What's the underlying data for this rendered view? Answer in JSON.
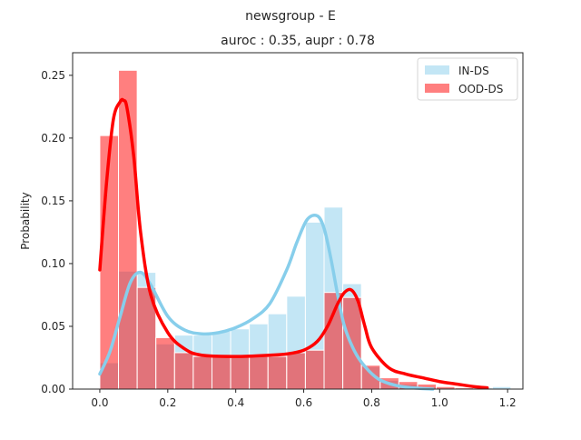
{
  "chart_data": {
    "type": "bar",
    "suptitle": "newsgroup - E",
    "title": "auroc : 0.35, aupr : 0.78",
    "xlabel": "",
    "ylabel": "Probability",
    "xlim": [
      -0.08,
      1.245
    ],
    "ylim": [
      0,
      0.268
    ],
    "xticks": [
      0.0,
      0.2,
      0.4,
      0.6,
      0.8,
      1.0,
      1.2
    ],
    "xtick_labels": [
      "0.0",
      "0.2",
      "0.4",
      "0.6",
      "0.8",
      "1.0",
      "1.2"
    ],
    "yticks": [
      0.0,
      0.05,
      0.1,
      0.15,
      0.2,
      0.25
    ],
    "ytick_labels": [
      "0.00",
      "0.05",
      "0.10",
      "0.15",
      "0.20",
      "0.25"
    ],
    "grid": false,
    "legend": {
      "placement": "top-right",
      "entries": [
        "IN-DS",
        "OOD-DS"
      ]
    },
    "series": [
      {
        "name": "IN-DS",
        "kind": "histogram",
        "color": "#87ceeb",
        "bins": [
          {
            "x0": 0.0,
            "x1": 0.055,
            "value": 0.021
          },
          {
            "x0": 0.055,
            "x1": 0.11,
            "value": 0.094
          },
          {
            "x0": 0.11,
            "x1": 0.165,
            "value": 0.093
          },
          {
            "x0": 0.165,
            "x1": 0.22,
            "value": 0.036
          },
          {
            "x0": 0.22,
            "x1": 0.275,
            "value": 0.043
          },
          {
            "x0": 0.275,
            "x1": 0.33,
            "value": 0.043
          },
          {
            "x0": 0.33,
            "x1": 0.385,
            "value": 0.046
          },
          {
            "x0": 0.385,
            "x1": 0.44,
            "value": 0.048
          },
          {
            "x0": 0.44,
            "x1": 0.495,
            "value": 0.052
          },
          {
            "x0": 0.495,
            "x1": 0.55,
            "value": 0.06
          },
          {
            "x0": 0.55,
            "x1": 0.605,
            "value": 0.074
          },
          {
            "x0": 0.605,
            "x1": 0.66,
            "value": 0.133
          },
          {
            "x0": 0.66,
            "x1": 0.715,
            "value": 0.145
          },
          {
            "x0": 0.715,
            "x1": 0.77,
            "value": 0.084
          },
          {
            "x0": 0.77,
            "x1": 0.825,
            "value": 0.018
          },
          {
            "x0": 0.825,
            "x1": 0.88,
            "value": 0.007
          },
          {
            "x0": 0.88,
            "x1": 0.935,
            "value": 0.004
          },
          {
            "x0": 0.935,
            "x1": 0.99,
            "value": 0.002
          },
          {
            "x0": 0.99,
            "x1": 1.045,
            "value": 0.001
          },
          {
            "x0": 1.045,
            "x1": 1.1,
            "value": 0.001
          },
          {
            "x0": 1.1,
            "x1": 1.155,
            "value": 0.001
          },
          {
            "x0": 1.155,
            "x1": 1.21,
            "value": 0.002
          }
        ],
        "kde": {
          "x": [
            0.0,
            0.03,
            0.06,
            0.09,
            0.12,
            0.15,
            0.2,
            0.25,
            0.3,
            0.35,
            0.4,
            0.45,
            0.5,
            0.55,
            0.58,
            0.61,
            0.64,
            0.66,
            0.68,
            0.7,
            0.72,
            0.75,
            0.78,
            0.82,
            0.87,
            0.92,
            0.98
          ],
          "y": [
            0.012,
            0.03,
            0.058,
            0.085,
            0.093,
            0.083,
            0.058,
            0.047,
            0.044,
            0.045,
            0.049,
            0.056,
            0.068,
            0.095,
            0.117,
            0.135,
            0.138,
            0.128,
            0.104,
            0.075,
            0.05,
            0.03,
            0.018,
            0.008,
            0.003,
            0.001,
            0.0
          ]
        }
      },
      {
        "name": "OOD-DS",
        "kind": "histogram",
        "color": "#ff0000",
        "bins": [
          {
            "x0": 0.0,
            "x1": 0.055,
            "value": 0.202
          },
          {
            "x0": 0.055,
            "x1": 0.11,
            "value": 0.254
          },
          {
            "x0": 0.11,
            "x1": 0.165,
            "value": 0.081
          },
          {
            "x0": 0.165,
            "x1": 0.22,
            "value": 0.041
          },
          {
            "x0": 0.22,
            "x1": 0.275,
            "value": 0.029
          },
          {
            "x0": 0.275,
            "x1": 0.33,
            "value": 0.026
          },
          {
            "x0": 0.33,
            "x1": 0.385,
            "value": 0.026
          },
          {
            "x0": 0.385,
            "x1": 0.44,
            "value": 0.026
          },
          {
            "x0": 0.44,
            "x1": 0.495,
            "value": 0.026
          },
          {
            "x0": 0.495,
            "x1": 0.55,
            "value": 0.026
          },
          {
            "x0": 0.55,
            "x1": 0.605,
            "value": 0.029
          },
          {
            "x0": 0.605,
            "x1": 0.66,
            "value": 0.031
          },
          {
            "x0": 0.66,
            "x1": 0.715,
            "value": 0.077
          },
          {
            "x0": 0.715,
            "x1": 0.77,
            "value": 0.073
          },
          {
            "x0": 0.77,
            "x1": 0.825,
            "value": 0.019
          },
          {
            "x0": 0.825,
            "x1": 0.88,
            "value": 0.009
          },
          {
            "x0": 0.88,
            "x1": 0.935,
            "value": 0.006
          },
          {
            "x0": 0.935,
            "x1": 0.99,
            "value": 0.004
          },
          {
            "x0": 0.99,
            "x1": 1.045,
            "value": 0.002
          },
          {
            "x0": 1.045,
            "x1": 1.1,
            "value": 0.001
          }
        ],
        "kde": {
          "x": [
            0.0,
            0.02,
            0.04,
            0.06,
            0.07,
            0.08,
            0.1,
            0.12,
            0.15,
            0.2,
            0.25,
            0.3,
            0.4,
            0.5,
            0.55,
            0.6,
            0.64,
            0.67,
            0.7,
            0.72,
            0.74,
            0.76,
            0.78,
            0.8,
            0.85,
            0.9,
            0.95,
            1.0,
            1.05,
            1.1,
            1.14
          ],
          "y": [
            0.095,
            0.165,
            0.215,
            0.229,
            0.23,
            0.224,
            0.185,
            0.125,
            0.075,
            0.045,
            0.032,
            0.027,
            0.026,
            0.027,
            0.028,
            0.031,
            0.038,
            0.05,
            0.068,
            0.077,
            0.079,
            0.07,
            0.05,
            0.033,
            0.017,
            0.012,
            0.009,
            0.006,
            0.004,
            0.002,
            0.001
          ]
        }
      }
    ]
  }
}
